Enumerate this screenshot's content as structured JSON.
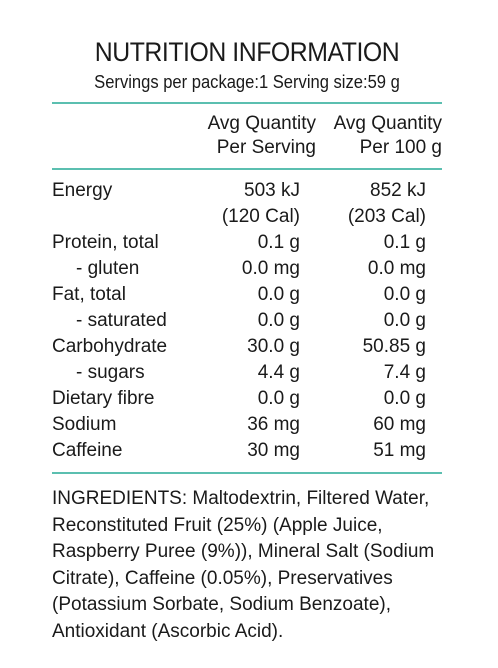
{
  "title": "NUTRITION INFORMATION",
  "servings": "Servings per package:1 Serving size:59 g",
  "headers": {
    "per_serving_line1": "Avg Quantity",
    "per_serving_line2": "Per Serving",
    "per_100g_line1": "Avg Quantity",
    "per_100g_line2": "Per 100 g"
  },
  "rows": [
    {
      "label": "Energy",
      "per_serving": "503 kJ",
      "per_100g": "852 kJ"
    },
    {
      "label": "",
      "per_serving": "(120 Cal)",
      "per_100g": "(203 Cal)"
    },
    {
      "label": "Protein, total",
      "per_serving": "0.1 g",
      "per_100g": "0.1 g"
    },
    {
      "label": "- gluten",
      "per_serving": "0.0 mg",
      "per_100g": "0.0 mg"
    },
    {
      "label": "Fat, total",
      "per_serving": "0.0 g",
      "per_100g": "0.0 g"
    },
    {
      "label": "- saturated",
      "per_serving": "0.0 g",
      "per_100g": "0.0 g"
    },
    {
      "label": "Carbohydrate",
      "per_serving": "30.0 g",
      "per_100g": "50.85 g"
    },
    {
      "label": "- sugars",
      "per_serving": "4.4 g",
      "per_100g": "7.4 g"
    },
    {
      "label": "Dietary fibre",
      "per_serving": "0.0 g",
      "per_100g": "0.0 g"
    },
    {
      "label": "Sodium",
      "per_serving": "36 mg",
      "per_100g": "60 mg"
    },
    {
      "label": "Caffeine",
      "per_serving": "30 mg",
      "per_100g": "51 mg"
    }
  ],
  "ingredients_lines": [
    "INGREDIENTS: Maltodextrin, Filtered Water,",
    "Reconstituted Fruit (25%) (Apple Juice,",
    "Raspberry Puree (9%)), Mineral Salt (Sodium",
    "Citrate), Caffeine (0.05%), Preservatives",
    "(Potassium Sorbate, Sodium Benzoate),",
    "Antioxidant (Ascorbic Acid)."
  ],
  "accent_color": "#5bbfb0"
}
